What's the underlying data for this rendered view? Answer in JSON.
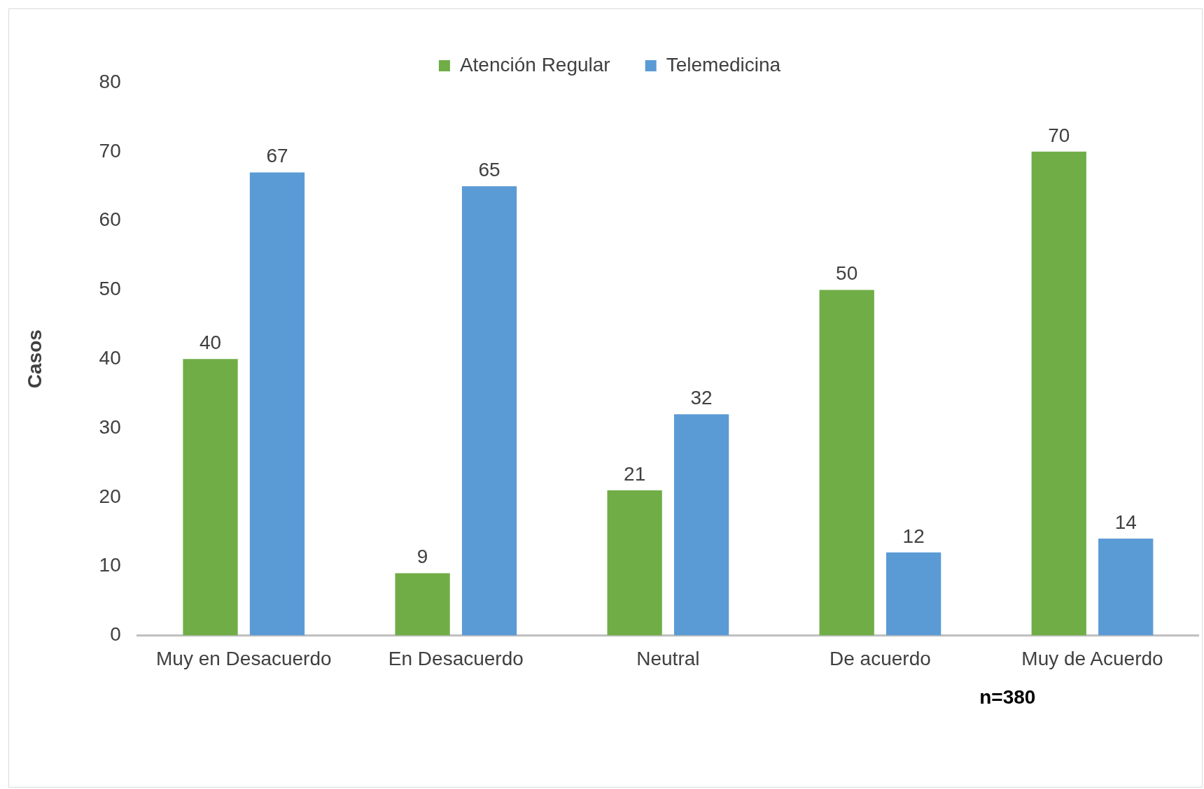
{
  "chart_data": {
    "type": "bar",
    "ylabel": "Casos",
    "categories": [
      "Muy en Desacuerdo",
      "En Desacuerdo",
      "Neutral",
      "De acuerdo",
      "Muy de Acuerdo"
    ],
    "series": [
      {
        "name": "Atención Regular",
        "color": "#70ad47",
        "values": [
          40,
          9,
          21,
          50,
          70
        ]
      },
      {
        "name": "Telemedicina",
        "color": "#5b9bd5",
        "values": [
          67,
          65,
          32,
          12,
          14
        ]
      }
    ],
    "ylim": [
      0,
      80
    ],
    "yticks": [
      0,
      10,
      20,
      30,
      40,
      50,
      60,
      70,
      80
    ],
    "grid": false,
    "legend": "top",
    "data_labels": true,
    "annotations": [
      "n=380"
    ]
  }
}
